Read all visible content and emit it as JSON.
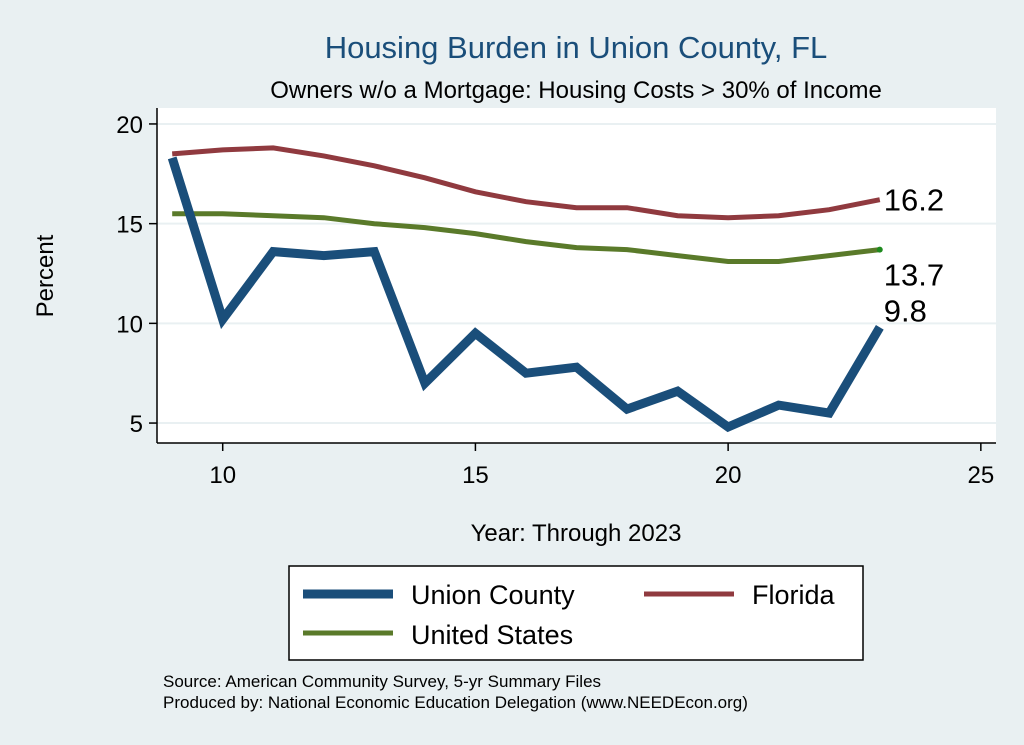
{
  "chart_data": {
    "type": "line",
    "title": "Housing Burden in Union County, FL",
    "subtitle": "Owners w/o a Mortgage: Housing Costs > 30% of Income",
    "xlabel": "Year: Through 2023",
    "ylabel": "Percent",
    "xlim": [
      8.7,
      25.3
    ],
    "ylim": [
      4.0,
      20.8
    ],
    "xticks": [
      10,
      15,
      20,
      25
    ],
    "yticks": [
      5,
      10,
      15,
      20
    ],
    "grid": true,
    "x": [
      9,
      10,
      11,
      12,
      13,
      14,
      15,
      16,
      17,
      18,
      19,
      20,
      21,
      22,
      23
    ],
    "series": [
      {
        "name": "Union County",
        "color": "#1a4e7a",
        "values": [
          18.3,
          10.2,
          13.6,
          13.4,
          13.6,
          7.0,
          9.5,
          7.5,
          7.8,
          5.7,
          6.6,
          4.8,
          5.9,
          5.5,
          9.8
        ],
        "end_label": "9.8"
      },
      {
        "name": "Florida",
        "color": "#903a3f",
        "values": [
          18.5,
          18.7,
          18.8,
          18.4,
          17.9,
          17.3,
          16.6,
          16.1,
          15.8,
          15.8,
          15.4,
          15.3,
          15.4,
          15.7,
          16.2
        ],
        "end_label": "16.2"
      },
      {
        "name": "United States",
        "color": "#5a7a2a",
        "values": [
          15.5,
          15.5,
          15.4,
          15.3,
          15.0,
          14.8,
          14.5,
          14.1,
          13.8,
          13.7,
          13.4,
          13.1,
          13.1,
          13.4,
          13.7
        ],
        "end_label": "13.7"
      }
    ],
    "legend": {
      "position": "bottom",
      "entries": [
        "Union County",
        "Florida",
        "United States"
      ]
    },
    "notes": [
      "Source: American Community Survey, 5-yr Summary Files",
      "Produced by: National Economic Education Delegation (www.NEEDEcon.org)"
    ]
  }
}
